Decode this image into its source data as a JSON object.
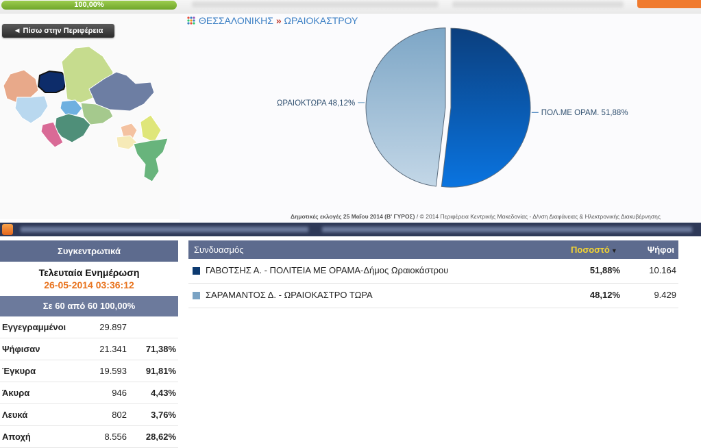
{
  "progress": {
    "label": "100,00%",
    "value_percent": 100
  },
  "back_button": {
    "label": "◄ Πίσω στην Περιφέρεια"
  },
  "breadcrumb": {
    "region": "ΘΕΣΣΑΛΟΝΙΚΗΣ",
    "separator": "»",
    "municipality": "ΩΡΑΙΟΚΑΣΤΡΟΥ"
  },
  "chart_data": {
    "type": "pie",
    "slices": [
      {
        "label": "ΠΟΛ.ΜΕ ΟΡΑΜ.",
        "value": 51.88,
        "display": "ΠΟΛ.ΜΕ ΟΡΑΜ. 51,88%",
        "color": "#0a5aa8"
      },
      {
        "label": "ΩΡΑΙΟΚΤΩΡΑ",
        "value": 48.12,
        "display": "ΩΡΑΙΟΚΤΩΡΑ 48,12%",
        "color": "#86aecb"
      }
    ]
  },
  "footer": {
    "elections": "Δημοτικές εκλογές 25 Μαΐου 2014 (Β' ΓΥΡΟΣ)",
    "copyright": " / © 2014 Περιφέρεια Κεντρικής Μακεδονίας - Δ/νση Διαφάνειας & Ηλεκτρονικής Διακυβέρνησης"
  },
  "summary": {
    "title": "Συγκεντρωτικά",
    "last_update_label": "Τελευταία Ενημέρωση",
    "last_update_value": "26-05-2014 03:36:12",
    "counted": "Σε 60 από 60 100,00%",
    "rows": [
      {
        "label": "Εγγεγραμμένοι",
        "value": "29.897",
        "percent": ""
      },
      {
        "label": "Ψήφισαν",
        "value": "21.341",
        "percent": "71,38%"
      },
      {
        "label": "Έγκυρα",
        "value": "19.593",
        "percent": "91,81%"
      },
      {
        "label": "Άκυρα",
        "value": "946",
        "percent": "4,43%"
      },
      {
        "label": "Λευκά",
        "value": "802",
        "percent": "3,76%"
      },
      {
        "label": "Αποχή",
        "value": "8.556",
        "percent": "28,62%"
      }
    ]
  },
  "results": {
    "headers": {
      "name": "Συνδυασμός",
      "percent": "Ποσοστό",
      "votes": "Ψήφοι"
    },
    "sort_icon": "sort-desc-icon",
    "rows": [
      {
        "name": "ΓΑΒΟΤΣΗΣ Α. - ΠΟΛΙΤΕΙΑ ΜΕ ΟΡΑΜΑ-Δήμος Ωραιοκάστρου",
        "percent": "51,88%",
        "votes": "10.164",
        "color": "#0d3a70"
      },
      {
        "name": "ΣΑΡΑΜΑΝΤΟΣ Δ. - ΩΡΑΙΟΚΑΣΤΡΟ ΤΩΡΑ",
        "percent": "48,12%",
        "votes": "9.429",
        "color": "#7aa3c4"
      }
    ]
  }
}
